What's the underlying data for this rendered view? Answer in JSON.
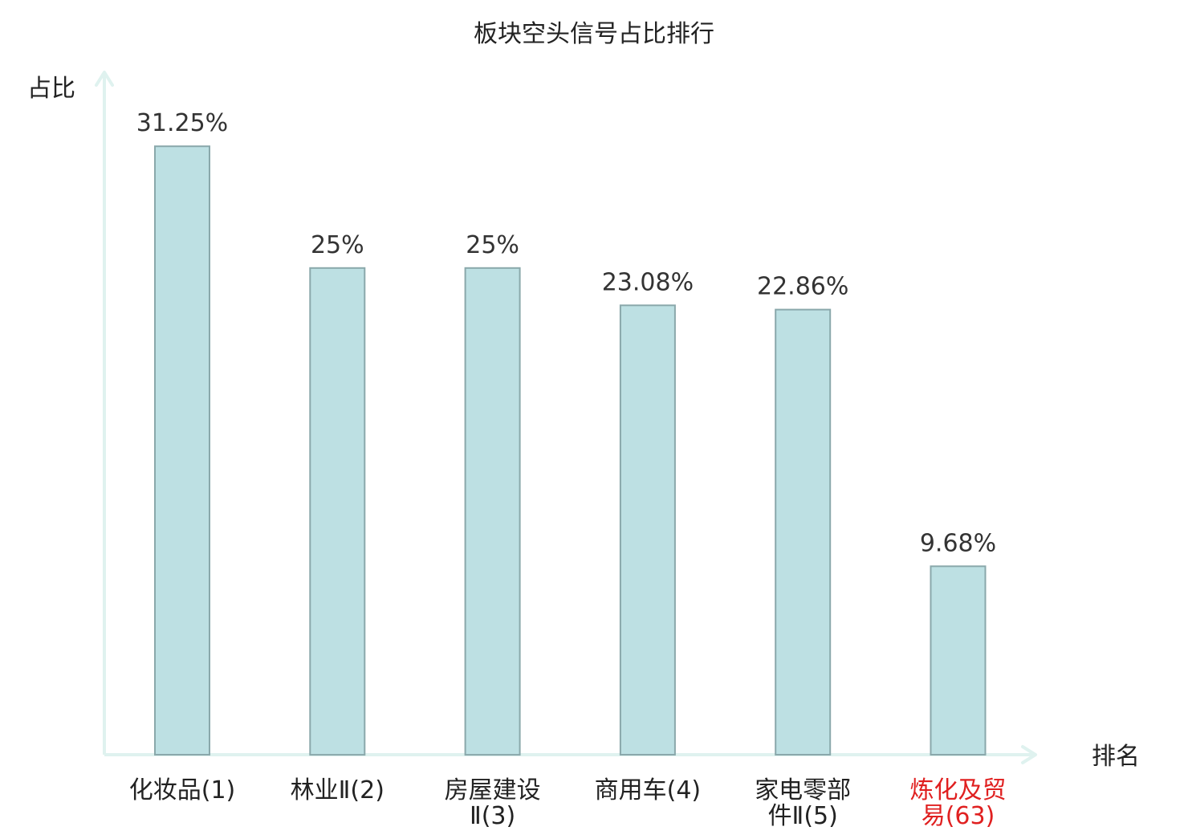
{
  "chart_data": {
    "type": "bar",
    "title": "板块空头信号占比排行",
    "ylabel": "占比",
    "xlabel": "排名",
    "categories": [
      [
        "化妆品(1)"
      ],
      [
        "林业Ⅱ(2)"
      ],
      [
        "房屋建设",
        "Ⅱ(3)"
      ],
      [
        "商用车(4)"
      ],
      [
        "家电零部",
        "件Ⅱ(5)"
      ],
      [
        "炼化及贸",
        "易(63)"
      ]
    ],
    "values": [
      31.25,
      25,
      25,
      23.08,
      22.86,
      9.68
    ],
    "value_labels": [
      "31.25%",
      "25%",
      "25%",
      "23.08%",
      "22.86%",
      "9.68%"
    ],
    "highlight_index": 5,
    "ylim": [
      0,
      35
    ],
    "grid": false,
    "legend": false
  },
  "colors": {
    "bar_fill": "#bde0e3",
    "bar_stroke": "#8aa8ab",
    "axis": "#dff2ef",
    "text": "#222222",
    "value_text": "#333333",
    "highlight": "#e02020"
  }
}
